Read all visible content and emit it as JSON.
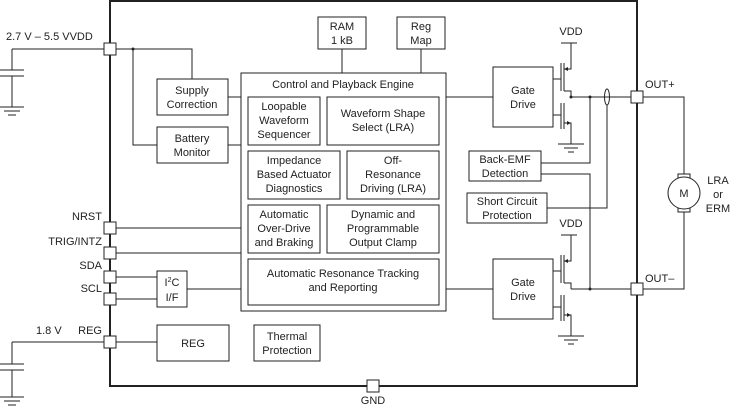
{
  "pins": {
    "vvdd": "2.7 V – 5.5 VVDD",
    "nrst": "NRST",
    "trig": "TRIG/INTZ",
    "sda": "SDA",
    "scl": "SCL",
    "reg_voltage": "1.8 V",
    "reg": "REG",
    "gnd": "GND",
    "out_plus": "OUT+",
    "out_minus": "OUT–"
  },
  "blocks": {
    "ram": [
      "RAM",
      "1 kB"
    ],
    "reg_map": [
      "Reg",
      "Map"
    ],
    "supply_correction": [
      "Supply",
      "Correction"
    ],
    "battery_monitor": [
      "Battery",
      "Monitor"
    ],
    "engine_title": "Control and Playback Engine",
    "loopable": [
      "Loopable",
      "Waveform",
      "Sequencer"
    ],
    "waveform_shape": [
      "Waveform Shape",
      "Select (LRA)"
    ],
    "impedance": [
      "Impedance",
      "Based Actuator",
      "Diagnostics"
    ],
    "off_resonance": [
      "Off-",
      "Resonance",
      "Driving (LRA)"
    ],
    "overdrive": [
      "Automatic",
      "Over-Drive",
      "and Braking"
    ],
    "clamp": [
      "Dynamic and",
      "Programmable",
      "Output Clamp"
    ],
    "resonance": [
      "Automatic Resonance Tracking",
      "and Reporting"
    ],
    "i2c": [
      "I",
      "2",
      "C",
      "I/F"
    ],
    "reg_block": "REG",
    "thermal": [
      "Thermal",
      "Protection"
    ],
    "gate_drive_top": [
      "Gate",
      "Drive"
    ],
    "gate_drive_bottom": [
      "Gate",
      "Drive"
    ],
    "back_emf": [
      "Back-EMF",
      "Detection"
    ],
    "short_circuit": [
      "Short Circuit",
      "Protection"
    ],
    "vdd_top": "VDD",
    "vdd_bottom": "VDD",
    "motor": "M",
    "actuator": [
      "LRA",
      "or",
      "ERM"
    ]
  }
}
